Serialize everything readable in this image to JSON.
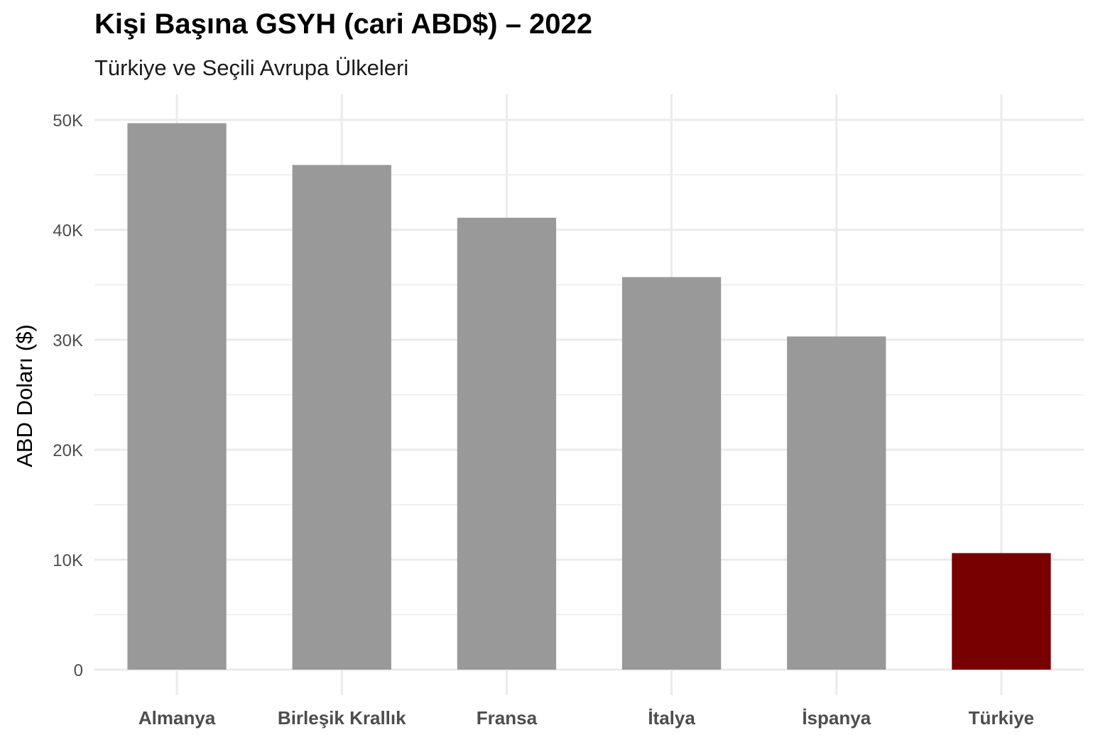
{
  "chart_data": {
    "type": "bar",
    "title": "Kişi Başına GSYH (cari ABD$) – 2022",
    "subtitle": "Türkiye ve Seçili Avrupa Ülkeleri",
    "xlabel": "",
    "ylabel": "ABD Doları ($)",
    "categories": [
      "Almanya",
      "Birleşik Krallık",
      "Fransa",
      "İtalya",
      "İspanya",
      "Türkiye"
    ],
    "values": [
      49700,
      45900,
      41100,
      35700,
      30300,
      10600
    ],
    "ylim": [
      0,
      52000
    ],
    "yticks": [
      0,
      10000,
      20000,
      30000,
      40000,
      50000
    ],
    "ytick_labels": [
      "0",
      "10K",
      "20K",
      "30K",
      "40K",
      "50K"
    ],
    "grid": true,
    "colors": {
      "default": "#999999",
      "highlight": "#780000",
      "highlight_category": "Türkiye",
      "grid": "#ebebeb"
    }
  }
}
